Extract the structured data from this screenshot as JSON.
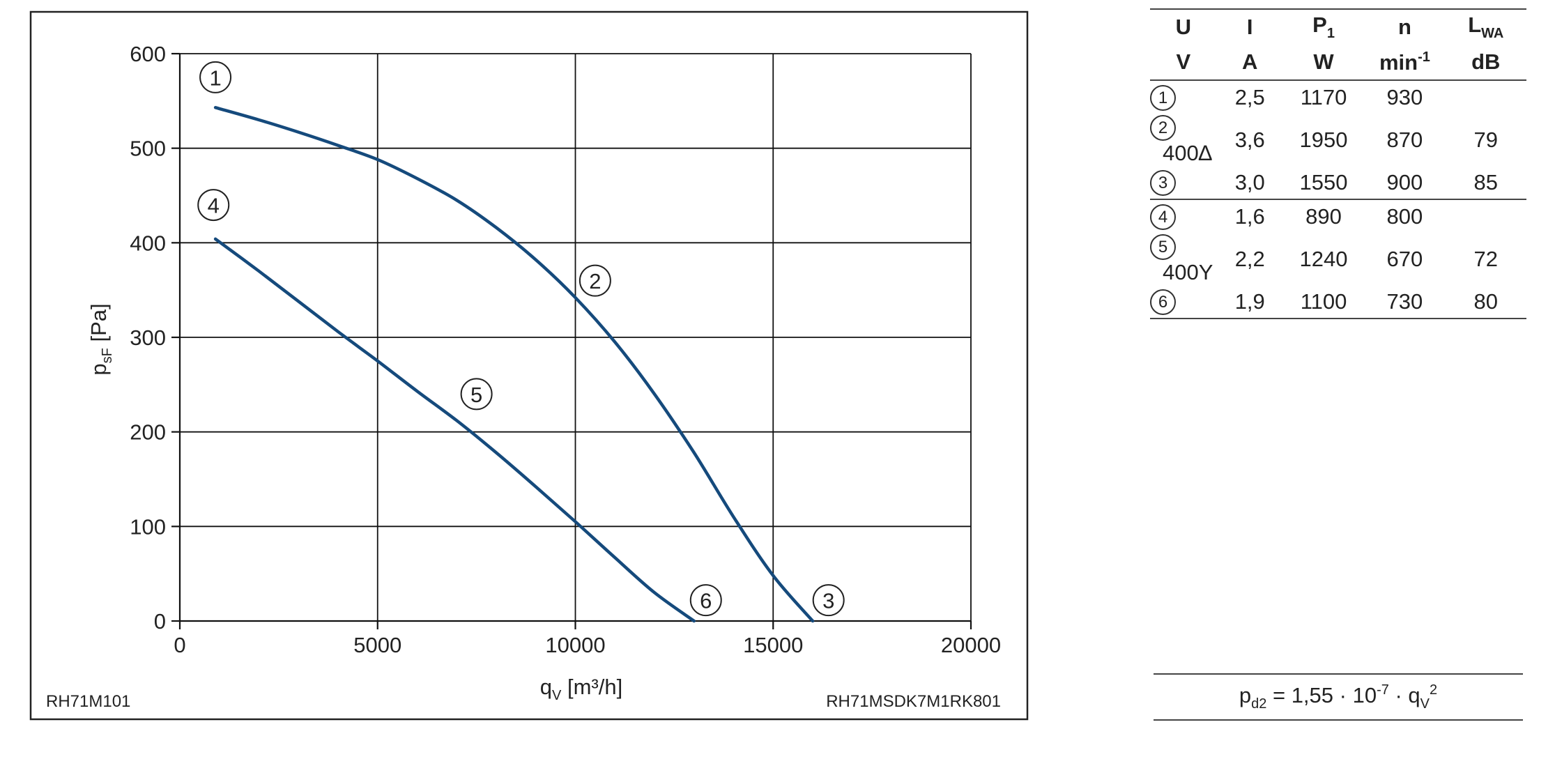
{
  "chart_data": {
    "type": "line",
    "xlabel_main": "q",
    "xlabel_sub": "V",
    "xlabel_unit": "[m³/h]",
    "ylabel_main": "p",
    "ylabel_sub": "sF",
    "ylabel_unit": "[Pa]",
    "xlim": [
      0,
      20000
    ],
    "ylim": [
      0,
      600
    ],
    "x_ticks": [
      "0",
      "5000",
      "10000",
      "15000",
      "20000"
    ],
    "y_ticks": [
      "0",
      "100",
      "200",
      "300",
      "400",
      "500",
      "600"
    ],
    "grid": true,
    "left_code": "RH71M101",
    "right_code": "RH71MSDK7M1RK801",
    "series": [
      {
        "color": "#154a7c",
        "x": [
          900,
          2000,
          3000,
          4000,
          5000,
          6000,
          7000,
          8000,
          9000,
          10000,
          11000,
          12000,
          13000,
          14000,
          15000,
          16000
        ],
        "y": [
          543,
          530,
          517,
          503,
          488,
          468,
          445,
          416,
          382,
          342,
          295,
          240,
          178,
          110,
          48,
          0
        ]
      },
      {
        "color": "#154a7c",
        "x": [
          900,
          2000,
          3000,
          4000,
          5000,
          6000,
          7000,
          8000,
          9000,
          10000,
          11000,
          12000,
          13000
        ],
        "y": [
          404,
          370,
          338,
          306,
          275,
          243,
          212,
          178,
          142,
          105,
          67,
          30,
          0
        ]
      }
    ],
    "markers": [
      {
        "label": "1",
        "x": 900,
        "y": 575
      },
      {
        "label": "2",
        "x": 10500,
        "y": 360
      },
      {
        "label": "3",
        "x": 16400,
        "y": 22
      },
      {
        "label": "4",
        "x": 850,
        "y": 440
      },
      {
        "label": "5",
        "x": 7500,
        "y": 240
      },
      {
        "label": "6",
        "x": 13300,
        "y": 22
      }
    ]
  },
  "table": {
    "header": [
      "U",
      "I",
      "P",
      "n",
      "L"
    ],
    "header_p_sub": "1",
    "header_l_sub": "WA",
    "units": [
      "V",
      "A",
      "W",
      "min",
      "dB"
    ],
    "unit_n_sup": "-1",
    "rows": [
      {
        "marker": "1",
        "U": "",
        "I": "2,5",
        "P": "1170",
        "n": "930",
        "L": ""
      },
      {
        "marker": "2",
        "U": "400∆",
        "I": "3,6",
        "P": "1950",
        "n": "870",
        "L": "79"
      },
      {
        "marker": "3",
        "U": "",
        "I": "3,0",
        "P": "1550",
        "n": "900",
        "L": "85"
      },
      {
        "marker": "4",
        "U": "",
        "I": "1,6",
        "P": "890",
        "n": "800",
        "L": ""
      },
      {
        "marker": "5",
        "U": "400Y",
        "I": "2,2",
        "P": "1240",
        "n": "670",
        "L": "72"
      },
      {
        "marker": "6",
        "U": "",
        "I": "1,9",
        "P": "1100",
        "n": "730",
        "L": "80"
      }
    ]
  },
  "formula": {
    "lhs_main": "p",
    "lhs_sub": "d2",
    "middle": " = 1,55 · 10",
    "exp": "-7",
    "dot": " · q",
    "q_sub": "V",
    "q_sup": "2"
  }
}
